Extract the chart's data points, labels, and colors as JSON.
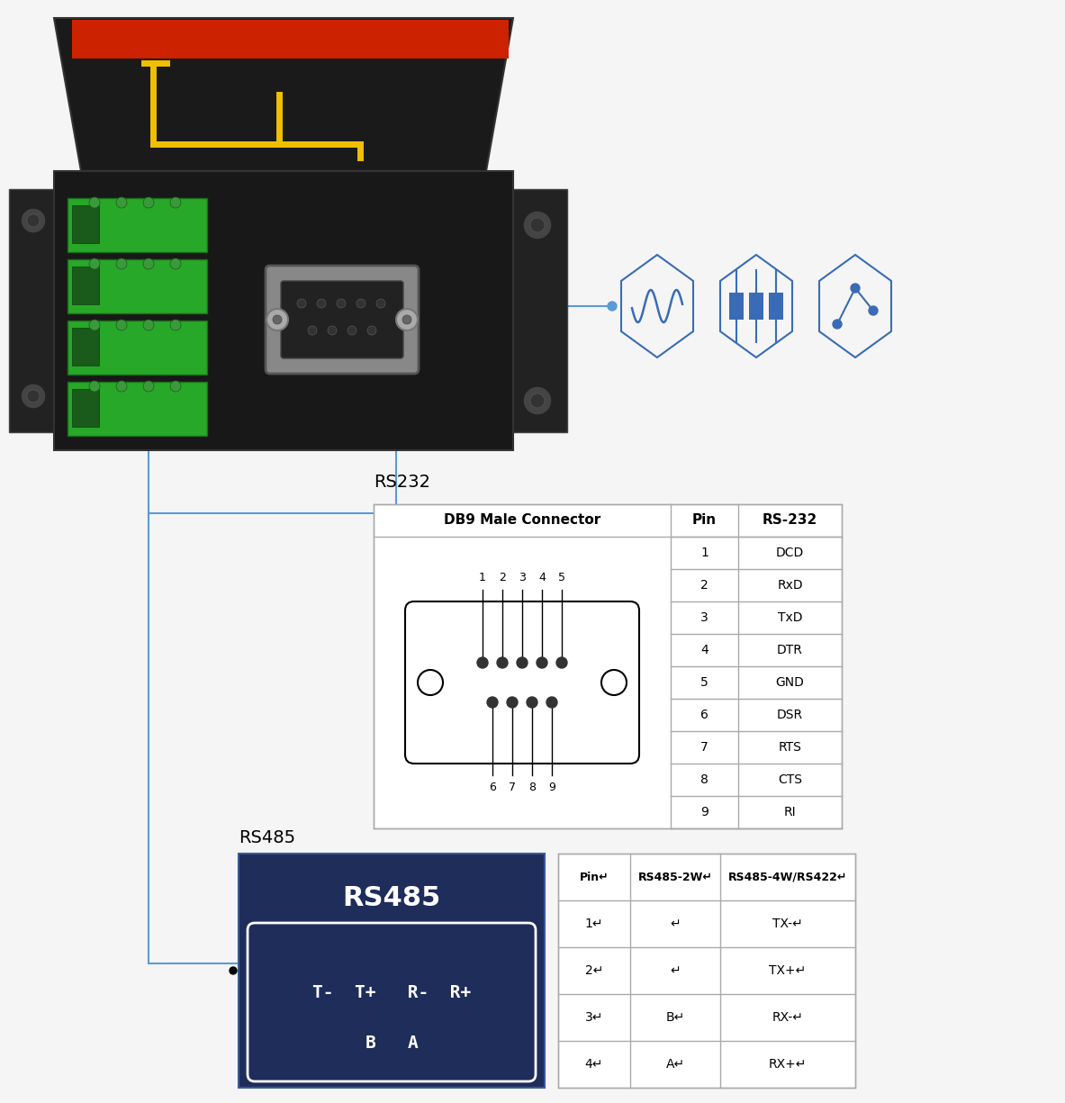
{
  "bg_color": "#f5f5f5",
  "line_color": "#5b9bd5",
  "rs232_label": "RS232",
  "rs485_label": "RS485",
  "rs232_pins": [
    [
      "1",
      "DCD"
    ],
    [
      "2",
      "RxD"
    ],
    [
      "3",
      "TxD"
    ],
    [
      "4",
      "DTR"
    ],
    [
      "5",
      "GND"
    ],
    [
      "6",
      "DSR"
    ],
    [
      "7",
      "RTS"
    ],
    [
      "8",
      "CTS"
    ],
    [
      "9",
      "RI"
    ]
  ],
  "rs485_box_bg": "#1e2d5a",
  "rs485_box_text_color": "#ffffff",
  "rs485_title": "RS485",
  "rs485_pins_line1": "T-  T+   R-  R+",
  "rs485_pins_line2": "B   A",
  "rs485_header": [
    "Pin↵",
    "RS485-2W↵",
    "RS485-4W/RS422↵"
  ],
  "rs485_data": [
    [
      "1↵",
      "↵",
      "TX-↵"
    ],
    [
      "2↵",
      "↵",
      "TX+↵"
    ],
    [
      "3↵",
      "B↵",
      "RX-↵"
    ],
    [
      "4↵",
      "A↵",
      "RX+↵"
    ]
  ],
  "hex_color": "#3a6cb5",
  "device_body_color": "#1a1a1a",
  "device_top_color": "#1a1a1a",
  "device_red_stripe": "#cc2200",
  "device_yellow": "#f0c000",
  "green_terminal": "#2db52d"
}
